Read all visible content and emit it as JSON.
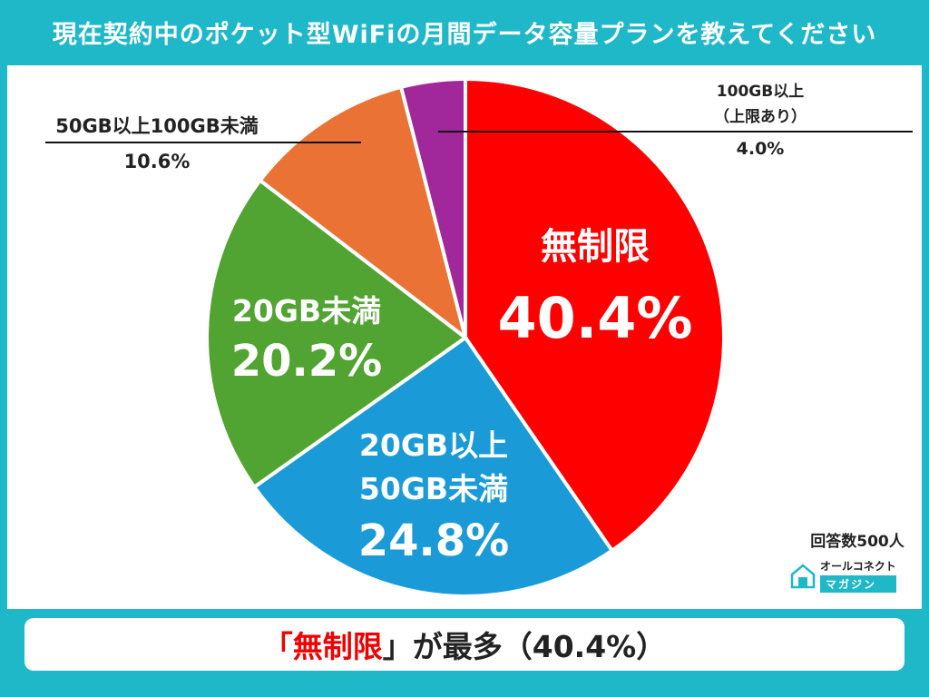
{
  "title": "現在契約中のポケット型WiFiの月間データ容量プランを教えてください",
  "source": {
    "respondents": "回答数500人",
    "brand_top": "オールコネクト",
    "brand_bottom": "マガジン"
  },
  "footer": {
    "open_bracket": "「",
    "highlight": "無制限",
    "close_rest": "」が最多（40.4%）"
  },
  "colors": {
    "accent": "#1fb8c9",
    "unlimited": "#fe0000",
    "50to100": "#ea7234",
    "100plus": "#a0289a",
    "20to50": "#1a9bd7",
    "under20": "#51a432"
  },
  "chart_data": {
    "type": "pie",
    "start": "12 o'clock, clockwise",
    "slices": [
      {
        "label": "無制限",
        "value": 40.4,
        "value_label": "40.4%",
        "color": "#fe0000"
      },
      {
        "label": "20GB以上\n50GB未満",
        "value": 24.8,
        "value_label": "24.8%",
        "color": "#1a9bd7"
      },
      {
        "label": "20GB未満",
        "value": 20.2,
        "value_label": "20.2%",
        "color": "#51a432"
      },
      {
        "label": "50GB以上100GB未満",
        "value": 10.6,
        "value_label": "10.6%",
        "color": "#ea7234"
      },
      {
        "label": "100GB以上\n（上限あり）",
        "value": 4.0,
        "value_label": "4.0%",
        "color": "#a0289a"
      }
    ]
  }
}
